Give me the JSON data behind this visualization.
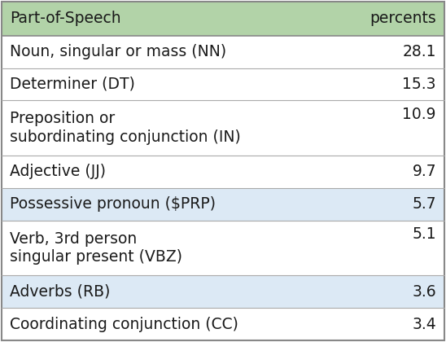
{
  "header": [
    "Part-of-Speech",
    "percents"
  ],
  "rows": [
    [
      "Noun, singular or mass (NN)",
      "28.1"
    ],
    [
      "Determiner (DT)",
      "15.3"
    ],
    [
      "Preposition or\nsubordinating conjunction (IN)",
      "10.9"
    ],
    [
      "Adjective (JJ)",
      "9.7"
    ],
    [
      "Possessive pronoun ($PRP)",
      "5.7"
    ],
    [
      "Verb, 3rd person\nsingular present (VBZ)",
      "5.1"
    ],
    [
      "Adverbs (RB)",
      "3.6"
    ],
    [
      "Coordinating conjunction (CC)",
      "3.4"
    ]
  ],
  "row_is_multiline": [
    false,
    false,
    true,
    false,
    false,
    true,
    false,
    false
  ],
  "header_bg": "#b2d3a8",
  "row_bg_light_blue": "#dce9f5",
  "row_bg_white": "#ffffff",
  "row_colors": [
    0,
    0,
    0,
    0,
    1,
    0,
    1,
    0
  ],
  "header_fontsize": 13.5,
  "row_fontsize": 13.5,
  "fig_width": 5.48,
  "fig_height": 4.2,
  "dpi": 100,
  "text_color": "#1a1a1a",
  "border_color": "#888888",
  "line_color": "#aaaaaa"
}
